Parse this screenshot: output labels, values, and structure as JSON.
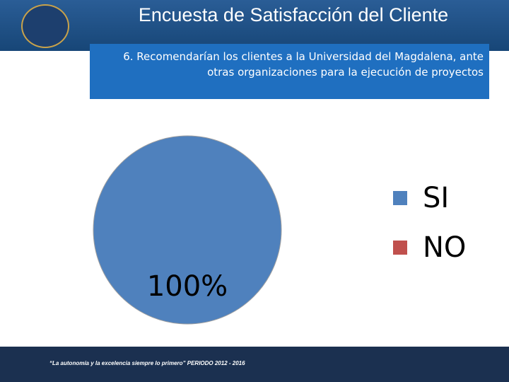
{
  "header": {
    "title": "Encuesta de Satisfacción del Cliente"
  },
  "chart_data": {
    "type": "pie",
    "title": "6. Recomendarían los clientes a la Universidad del Magdalena, ante otras organizaciones para la ejecución de proyectos",
    "categories": [
      "SI",
      "NO"
    ],
    "values": [
      100,
      0
    ],
    "value_labels": [
      "100%",
      null
    ],
    "colors": [
      "#4f81bd",
      "#c0504d"
    ],
    "legend": "right"
  },
  "footer": {
    "slogan": "“La autonomía y la excelencia siempre lo primero” PERIODO 2012 - 2016"
  }
}
